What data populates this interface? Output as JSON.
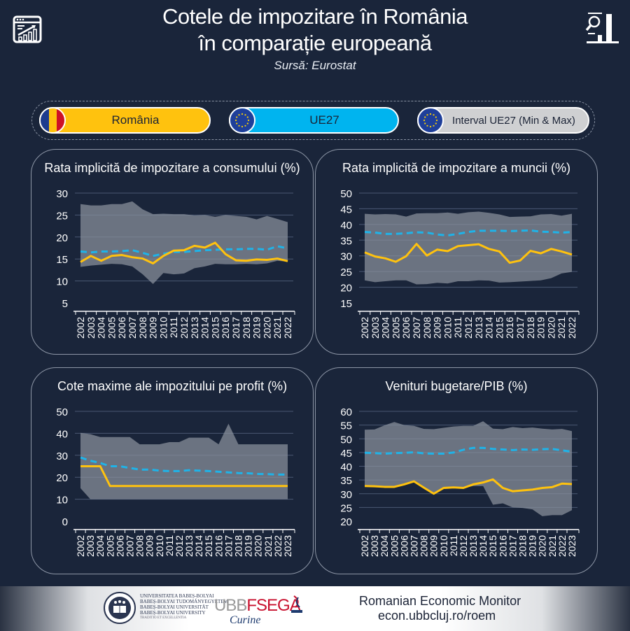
{
  "header": {
    "title_line1": "Cotele de impozitare în România",
    "title_line2": "în comparație europeană",
    "subtitle": "Sursă: Eurostat",
    "left_icon": "analytics-dashboard-icon",
    "right_icon": "search-bar-chart-icon"
  },
  "legend": {
    "items": [
      {
        "label": "România",
        "icon": "romania-flag-icon",
        "color": "#ffc20e"
      },
      {
        "label": "UE27",
        "icon": "eu-flag-icon",
        "color": "#00b4ef"
      },
      {
        "label": "Interval UE27 (Min & Max)",
        "icon": "eu-flag-icon",
        "color": "#cfd0d2"
      }
    ]
  },
  "colors": {
    "romania": "#ffc20e",
    "eu27": "#1fb3e8",
    "range": "#6b7480",
    "background": "#1a253a"
  },
  "chart_data": [
    {
      "type": "line",
      "title": "Rata implicită de impozitare a consumului (%)",
      "xlabel": "",
      "ylabel": "",
      "ylim": [
        5,
        30
      ],
      "yticks": [
        5,
        10,
        15,
        20,
        25,
        30
      ],
      "grid": true,
      "x": [
        "2002",
        "2003",
        "2004",
        "2005",
        "2006",
        "2007",
        "2008",
        "2009",
        "2010",
        "2011",
        "2012",
        "2013",
        "2014",
        "2015",
        "2016",
        "2017",
        "2018",
        "2019",
        "2020",
        "2021",
        "2022"
      ],
      "series": [
        {
          "name": "România",
          "style": "solid",
          "values": [
            14.3,
            15.7,
            14.6,
            15.7,
            15.9,
            15.4,
            15.1,
            14.0,
            15.7,
            16.9,
            17.0,
            18.0,
            17.6,
            18.7,
            16.1,
            14.7,
            14.6,
            14.9,
            14.8,
            15.1,
            14.5
          ]
        },
        {
          "name": "UE27",
          "style": "dashed",
          "values": [
            16.7,
            16.5,
            16.7,
            16.7,
            16.8,
            17.0,
            16.4,
            15.7,
            16.2,
            16.6,
            16.6,
            16.8,
            17.0,
            17.1,
            17.2,
            17.2,
            17.3,
            17.3,
            17.1,
            17.9,
            17.4
          ]
        },
        {
          "name": "Interval UE27 (Min)",
          "style": "area-lower",
          "values": [
            13.2,
            13.5,
            13.7,
            13.9,
            13.8,
            13.3,
            11.5,
            9.3,
            11.8,
            11.5,
            11.7,
            12.9,
            13.3,
            13.9,
            13.8,
            13.8,
            13.9,
            13.8,
            14.0,
            14.6,
            14.4
          ]
        },
        {
          "name": "Interval UE27 (Max)",
          "style": "area-upper",
          "values": [
            27.5,
            27.2,
            27.2,
            27.5,
            27.5,
            28.1,
            26.3,
            25.2,
            25.3,
            25.2,
            25.2,
            24.9,
            25.0,
            24.6,
            25.0,
            24.8,
            24.6,
            24.0,
            24.8,
            24.1,
            23.4
          ]
        }
      ]
    },
    {
      "type": "line",
      "title": "Rata implicită de impozitare a muncii (%)",
      "xlabel": "",
      "ylabel": "",
      "ylim": [
        15,
        50
      ],
      "yticks": [
        15,
        20,
        25,
        30,
        35,
        40,
        45,
        50
      ],
      "grid": true,
      "x": [
        "2002",
        "2003",
        "2004",
        "2005",
        "2006",
        "2007",
        "2008",
        "2009",
        "2010",
        "2011",
        "2012",
        "2013",
        "2014",
        "2015",
        "2016",
        "2017",
        "2018",
        "2019",
        "2020",
        "2021",
        "2022"
      ],
      "series": [
        {
          "name": "România",
          "style": "solid",
          "values": [
            31.1,
            29.8,
            29.2,
            28.1,
            29.9,
            33.8,
            30.1,
            32.0,
            31.5,
            33.1,
            33.4,
            33.7,
            32.2,
            31.4,
            27.8,
            28.5,
            31.6,
            30.8,
            32.2,
            31.4,
            30.4
          ]
        },
        {
          "name": "UE27",
          "style": "dashed",
          "values": [
            37.6,
            37.4,
            37.0,
            37.0,
            37.2,
            37.5,
            37.4,
            36.8,
            36.5,
            37.0,
            37.6,
            38.0,
            38.0,
            38.0,
            37.9,
            38.0,
            38.1,
            37.7,
            37.6,
            37.4,
            37.6
          ]
        },
        {
          "name": "Interval UE27 (Min)",
          "style": "area-lower",
          "values": [
            22.2,
            21.6,
            21.9,
            22.2,
            22.2,
            20.9,
            21.0,
            21.4,
            21.2,
            21.9,
            21.9,
            22.2,
            22.1,
            21.5,
            21.6,
            21.8,
            22.0,
            22.2,
            22.9,
            24.4,
            24.9
          ]
        },
        {
          "name": "Interval UE27 (Max)",
          "style": "area-upper",
          "values": [
            43.4,
            43.2,
            43.3,
            43.2,
            42.5,
            43.5,
            43.6,
            43.6,
            43.8,
            43.4,
            43.9,
            44.1,
            43.7,
            43.2,
            42.4,
            42.5,
            42.6,
            43.2,
            43.3,
            42.8,
            43.4
          ]
        }
      ]
    },
    {
      "type": "line",
      "title": "Cote maxime ale impozitului pe profit (%)",
      "xlabel": "",
      "ylabel": "",
      "ylim": [
        0,
        50
      ],
      "yticks": [
        0,
        10,
        20,
        30,
        40,
        50
      ],
      "grid": true,
      "x": [
        "2002",
        "2003",
        "2004",
        "2005",
        "2006",
        "2007",
        "2008",
        "2009",
        "2010",
        "2011",
        "2012",
        "2013",
        "2014",
        "2015",
        "2016",
        "2017",
        "2018",
        "2019",
        "2020",
        "2021",
        "2022",
        "2023"
      ],
      "series": [
        {
          "name": "România",
          "style": "solid",
          "values": [
            25,
            25,
            25,
            16,
            16,
            16,
            16,
            16,
            16,
            16,
            16,
            16,
            16,
            16,
            16,
            16,
            16,
            16,
            16,
            16,
            16,
            16
          ]
        },
        {
          "name": "UE27",
          "style": "dashed",
          "values": [
            29.0,
            27.5,
            26.5,
            25.0,
            25.0,
            24.2,
            23.5,
            23.5,
            23.0,
            22.8,
            22.8,
            23.2,
            23.0,
            22.8,
            22.5,
            22.2,
            21.9,
            21.8,
            21.5,
            21.4,
            21.2,
            21.2
          ]
        },
        {
          "name": "Interval UE27 (Min)",
          "style": "area-lower",
          "values": [
            15,
            10,
            10,
            10,
            10,
            10,
            10,
            10,
            10,
            10,
            10,
            10,
            10,
            10,
            10,
            10,
            10,
            10,
            10,
            10,
            10,
            10
          ]
        },
        {
          "name": "Interval UE27 (Max)",
          "style": "area-upper",
          "values": [
            40.2,
            39.6,
            38.3,
            38.3,
            38.3,
            38.3,
            35.0,
            35.0,
            35.0,
            36.0,
            36.0,
            38.0,
            38.0,
            38.0,
            35.0,
            44.4,
            35.0,
            35.0,
            35.0,
            35.0,
            35.0,
            35.0
          ]
        }
      ]
    },
    {
      "type": "line",
      "title": "Venituri bugetare/PIB (%)",
      "xlabel": "",
      "ylabel": "",
      "ylim": [
        20,
        60
      ],
      "yticks": [
        20,
        25,
        30,
        35,
        40,
        45,
        50,
        55,
        60
      ],
      "grid": true,
      "x": [
        "2002",
        "2003",
        "2004",
        "2005",
        "2006",
        "2007",
        "2008",
        "2009",
        "2010",
        "2011",
        "2012",
        "2013",
        "2014",
        "2015",
        "2016",
        "2017",
        "2018",
        "2019",
        "2020",
        "2021",
        "2022",
        "2023"
      ],
      "series": [
        {
          "name": "România",
          "style": "solid",
          "values": [
            32.8,
            32.7,
            32.5,
            32.5,
            33.4,
            34.5,
            32.2,
            30.0,
            32.1,
            32.3,
            32.1,
            33.4,
            34.1,
            35.2,
            32.1,
            30.9,
            31.2,
            31.5,
            32.1,
            32.4,
            33.7,
            33.5
          ]
        },
        {
          "name": "UE27",
          "style": "dashed",
          "values": [
            44.9,
            44.8,
            44.6,
            44.8,
            44.9,
            45.1,
            44.7,
            44.6,
            44.6,
            45.0,
            46.0,
            46.7,
            46.7,
            46.3,
            46.1,
            45.9,
            46.1,
            46.0,
            46.2,
            46.3,
            45.8,
            45.3
          ]
        },
        {
          "name": "Interval UE27 (Min)",
          "style": "area-lower",
          "values": [
            32.8,
            32.7,
            32.5,
            32.5,
            33.4,
            34.5,
            32.2,
            30.0,
            32.1,
            32.3,
            32.1,
            32.8,
            32.8,
            26.0,
            26.5,
            25.0,
            24.8,
            24.3,
            21.8,
            22.2,
            22.2,
            24.0
          ]
        },
        {
          "name": "Interval UE27 (Max)",
          "style": "area-upper",
          "values": [
            53.3,
            53.4,
            54.9,
            56.1,
            55.0,
            54.7,
            53.6,
            53.5,
            54.0,
            54.5,
            54.7,
            54.7,
            56.4,
            53.7,
            53.5,
            54.3,
            53.9,
            54.1,
            53.7,
            53.4,
            53.6,
            52.8
          ]
        }
      ]
    }
  ],
  "footer": {
    "university_lines": [
      "UNIVERSITATEA BABEȘ-BOLYAI",
      "BABEȘ-BOLYAI TUDOMÁNYEGYETEM",
      "BABEȘ-BOLYAI UNIVERSITÄT",
      "BABEȘ-BOLYAI UNIVERSITY"
    ],
    "university_motto": "TRADITIO ET EXCELLENTIA",
    "fsega_logo_ubb": "UBB",
    "fsega_logo_fsega": "FSEGA",
    "fsega_signature": "Curine",
    "brand_title": "Romanian Economic Monitor",
    "brand_url": "econ.ubbcluj.ro/roem"
  }
}
